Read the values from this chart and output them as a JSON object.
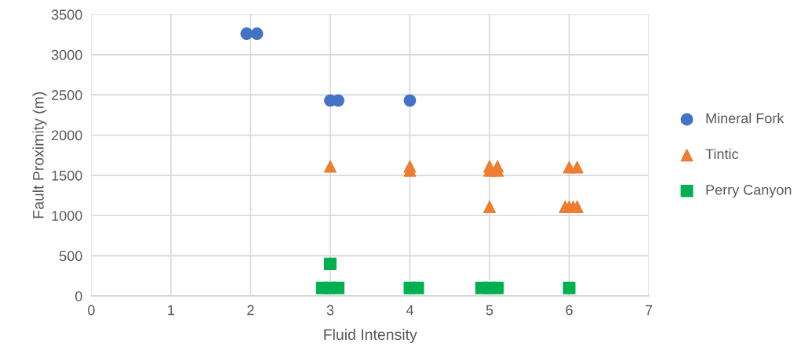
{
  "chart_data": {
    "type": "scatter",
    "xlabel": "Fluid Intensity",
    "ylabel": "Fault Proximity (m)",
    "xlim": [
      0,
      7
    ],
    "xticks": [
      0,
      1,
      2,
      3,
      4,
      5,
      6,
      7
    ],
    "ylim": [
      0,
      3500
    ],
    "yticks": [
      0,
      500,
      1000,
      1500,
      2000,
      2500,
      3000,
      3500
    ],
    "grid": true,
    "legend": "right",
    "series": [
      {
        "name": "Mineral Fork",
        "color": "#4472c4",
        "marker": "circle",
        "x": [
          1.95,
          2.08,
          3.0,
          3.1,
          4.0
        ],
        "values": [
          3260,
          3260,
          2430,
          2430,
          2430
        ]
      },
      {
        "name": "Tintic",
        "color": "#ed7d31",
        "marker": "triangle",
        "x": [
          3.0,
          4.0,
          4.0,
          5.0,
          5.0,
          5.1,
          5.1,
          5.0,
          6.0,
          6.1,
          5.95,
          6.0,
          6.05,
          6.1
        ],
        "values": [
          1610,
          1560,
          1610,
          1560,
          1610,
          1560,
          1610,
          1110,
          1600,
          1600,
          1110,
          1110,
          1110,
          1110
        ]
      },
      {
        "name": "Perry Canyon",
        "color": "#00b050",
        "marker": "square",
        "x": [
          3.0,
          2.9,
          3.0,
          3.1,
          4.0,
          4.1,
          4.9,
          5.0,
          5.1,
          6.0
        ],
        "values": [
          400,
          100,
          100,
          100,
          100,
          100,
          100,
          100,
          100,
          100
        ]
      }
    ]
  }
}
